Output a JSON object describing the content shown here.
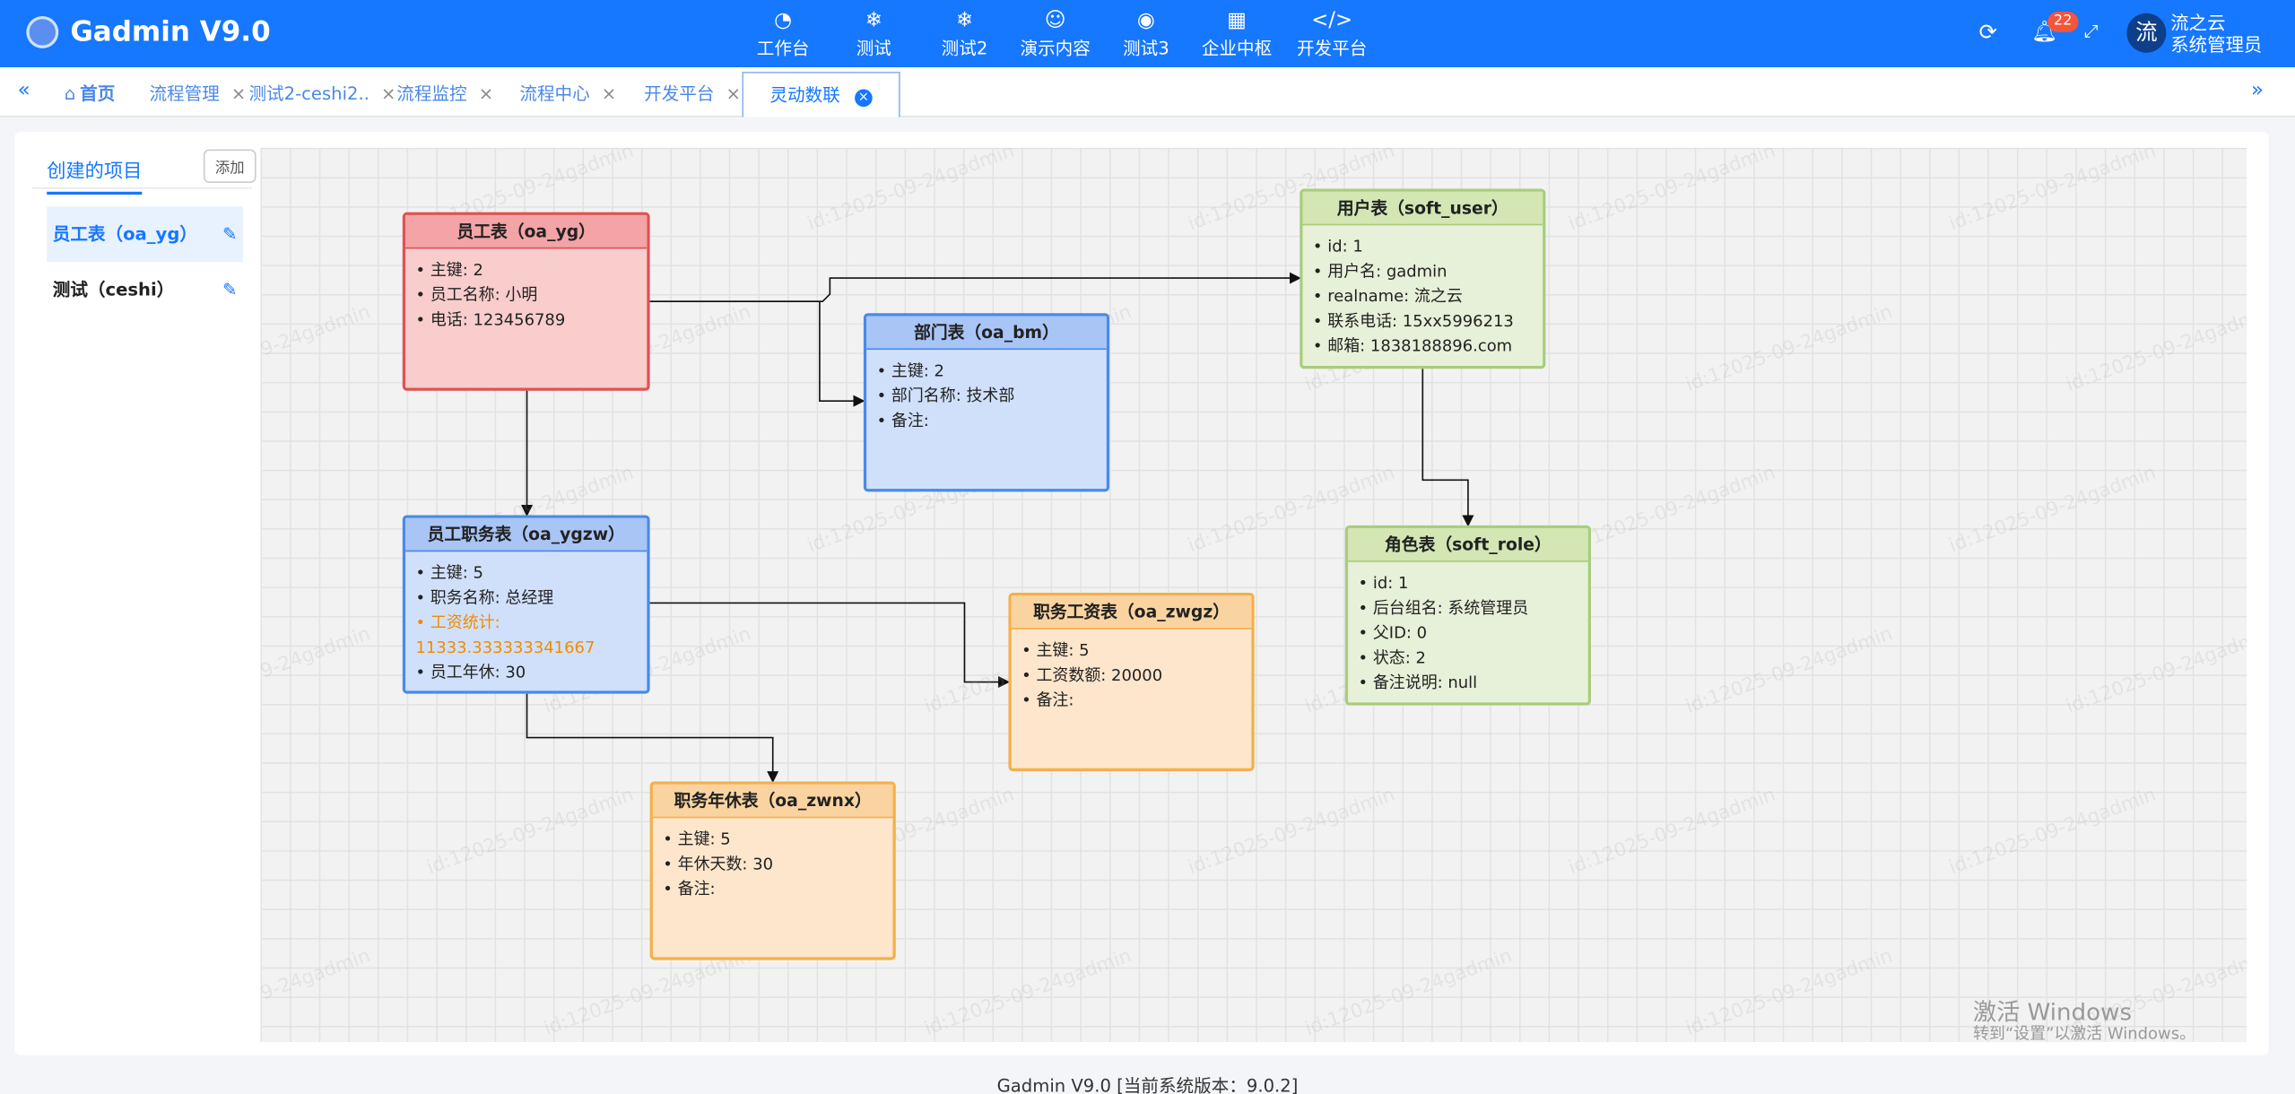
{
  "header": {
    "title": "Gadmin V9.0",
    "nav": [
      "工作台",
      "测试",
      "测试2",
      "演示内容",
      "测试3",
      "企业中枢",
      "开发平台"
    ],
    "notification_count": 22,
    "avatar": "流",
    "user_name": "流之云",
    "user_role": "系统管理员"
  },
  "tabs": [
    "首页",
    "流程管理",
    "测试2-ceshi2..",
    "流程监控",
    "流程中心",
    "开发平台",
    "灵动数联"
  ],
  "sidebar": {
    "title": "创建的项目",
    "add_button": "添加",
    "items": [
      "员工表（oa_yg）",
      "测试（ceshi）"
    ]
  },
  "diagram": {
    "nodes": [
      {
        "title": "员工表（oa_yg）",
        "theme": "red",
        "fields": [
          "主键: 2",
          "员工名称: 小明",
          "电话: 123456789"
        ]
      },
      {
        "title": "部门表（oa_bm）",
        "theme": "blue",
        "fields": [
          "主键: 2",
          "部门名称: 技术部",
          "备注:"
        ]
      },
      {
        "title": "用户表（soft_user）",
        "theme": "green",
        "fields": [
          "id: 1",
          "用户名: gadmin",
          "realname: 流之云",
          "联系电话: 15xx5996213",
          "邮箱: 1838188896.com"
        ]
      },
      {
        "title": "员工职务表（oa_ygzw）",
        "theme": "blue",
        "fields": [
          "主键: 5",
          "职务名称: 总经理",
          {
            "text": "工资统计: 11333.333333341667",
            "color": "#f08c00"
          },
          "员工年休: 30"
        ]
      },
      {
        "title": "职务工资表（oa_zwgz）",
        "theme": "orange",
        "fields": [
          "主键: 5",
          "工资数额: 20000",
          "备注:"
        ]
      },
      {
        "title": "角色表（soft_role）",
        "theme": "green",
        "fields": [
          "id: 1",
          "后台组名: 系统管理员",
          "父ID: 0",
          "状态: 2",
          "备注说明: null"
        ]
      },
      {
        "title": "职务年休表（oa_zwnx）",
        "theme": "orange",
        "fields": [
          "主键: 5",
          "年休天数: 30",
          "备注:"
        ]
      }
    ]
  },
  "watermark": "id:12025-09-24gadmin",
  "activation": {
    "title": "激活 Windows",
    "subtitle": "转到“设置”以激活 Windows。"
  },
  "footer": "Gadmin V9.0 [当前系统版本：9.0.2]"
}
